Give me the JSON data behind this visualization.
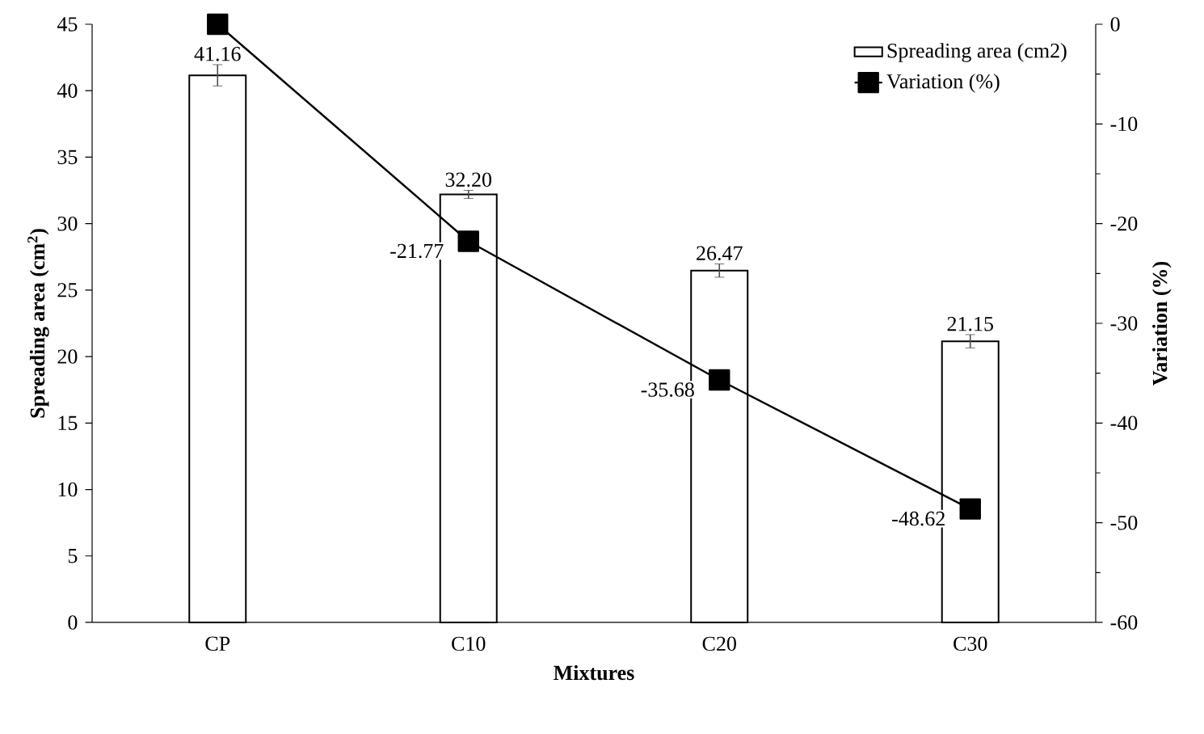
{
  "chart_data": {
    "type": "bar",
    "xlabel": "Mixtures",
    "ylabel": "**Spreading area (cm$^{2}$)**",
    "y2label": "Variation (%)",
    "categories": [
      "CP",
      "C10",
      "C20",
      "C30"
    ],
    "series": [
      {
        "name": "Spreading area (cm2)",
        "color": "#ffffff",
        "values": [
          41.16,
          32.2,
          26.47,
          21.15
        ],
        "errors": [
          0.8,
          0.3,
          0.5,
          0.5
        ],
        "value_labels": [
          "41.16",
          "32.20",
          "26.47",
          "21.15"
        ]
      },
      {
        "name": "Variation (%)",
        "type": "line",
        "axis": "y2",
        "color": "#000000",
        "marker": "square",
        "values": [
          0,
          -21.77,
          -35.68,
          -48.62
        ],
        "value_labels": [
          null,
          "-21.77",
          "-35.68",
          "-48.62"
        ]
      }
    ],
    "ylim": [
      0,
      45
    ],
    "yticks": [
      0,
      5,
      10,
      15,
      20,
      25,
      30,
      35,
      40,
      45
    ],
    "y2lim": [
      -60,
      0
    ],
    "y2ticks": [
      -60,
      -50,
      -40,
      -30,
      -20,
      -10,
      0
    ],
    "legend": "top right"
  }
}
